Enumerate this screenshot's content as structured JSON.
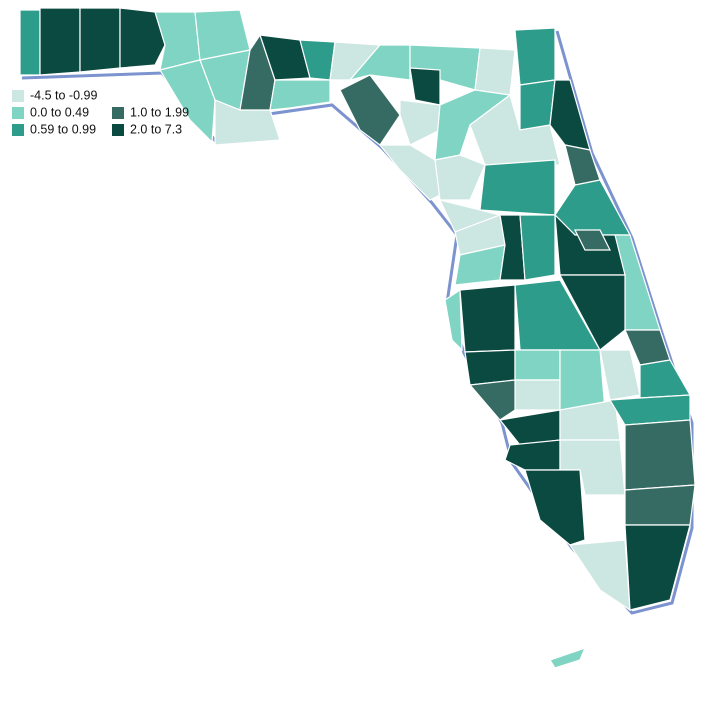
{
  "legend": {
    "items": [
      {
        "label": "-4.5 to -0.99",
        "color": "#cce6e1"
      },
      {
        "label": "0.0 to 0.49",
        "color": "#80d4c4"
      },
      {
        "label": "0.59 to 0.99",
        "color": "#2e9c8b"
      },
      {
        "label": "1.0 to 1.99",
        "color": "#366b63"
      },
      {
        "label": "2.0 to 7.3",
        "color": "#0b4a41"
      }
    ]
  }
}
